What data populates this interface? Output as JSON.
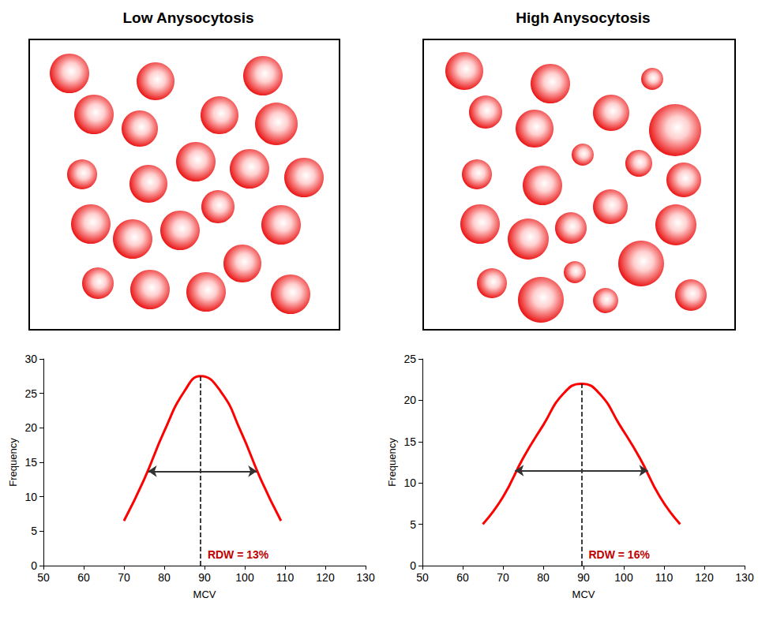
{
  "chart_data": [
    {
      "type": "line",
      "title": "Low Anysocytosis",
      "color": "#ff0000",
      "x": [
        70,
        75,
        80,
        85,
        89,
        94,
        99,
        104,
        109
      ],
      "values": [
        6.5,
        12.5,
        19.5,
        25.3,
        27.5,
        25.3,
        19.5,
        12.5,
        6.5
      ],
      "xlabel": "MCV",
      "ylabel": "Frequency",
      "xlim": [
        50,
        130
      ],
      "xticks": [
        50,
        60,
        70,
        80,
        90,
        100,
        110,
        120,
        130
      ],
      "ylim": [
        0,
        30
      ],
      "yticks": [
        0,
        5,
        10,
        15,
        20,
        25,
        30
      ],
      "grid": false,
      "mean_mcv": 89,
      "rdw_arrow": {
        "y": 13.7,
        "x": [
          76,
          103
        ]
      },
      "annotation": "RDW = 13%"
    },
    {
      "type": "line",
      "title": "High Anysocytosis",
      "color": "#ff0000",
      "x": [
        65,
        70,
        75,
        80,
        85,
        89.5,
        94,
        99,
        104,
        109,
        114
      ],
      "values": [
        5,
        8.3,
        13,
        17,
        20.8,
        22,
        20.8,
        17,
        13,
        8.3,
        5
      ],
      "xlabel": "MCV",
      "ylabel": "Frequency",
      "xlim": [
        50,
        130
      ],
      "xticks": [
        50,
        60,
        70,
        80,
        90,
        100,
        110,
        120,
        130
      ],
      "ylim": [
        0,
        25
      ],
      "yticks": [
        0,
        5,
        10,
        15,
        20,
        25
      ],
      "grid": false,
      "mean_mcv": 89.5,
      "rdw_arrow": {
        "y": 11.5,
        "x": [
          73,
          106
        ]
      },
      "annotation": "RDW = 16%"
    }
  ]
}
